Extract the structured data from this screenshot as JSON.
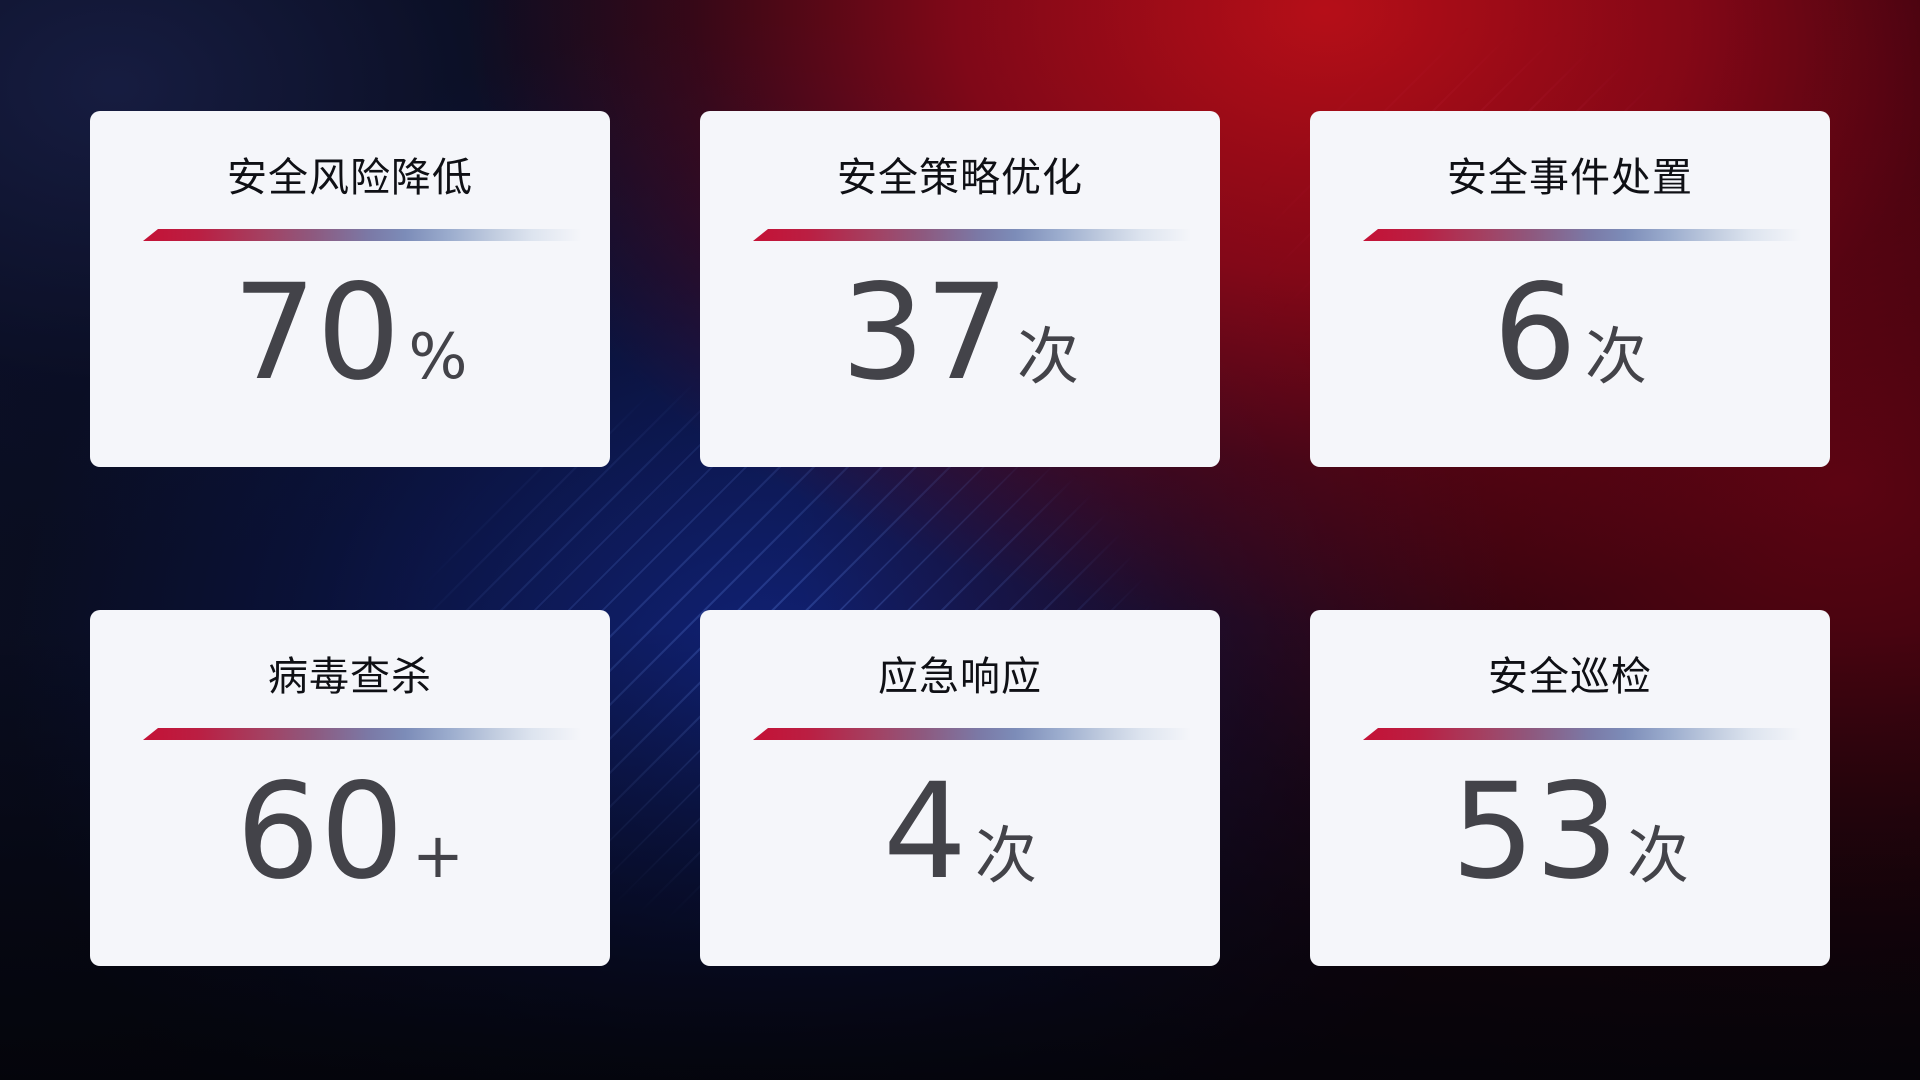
{
  "dashboard": {
    "cards": [
      {
        "title": "安全风险降低",
        "value": "70",
        "unit": "%"
      },
      {
        "title": "安全策略优化",
        "value": "37",
        "unit": "次"
      },
      {
        "title": "安全事件处置",
        "value": "6",
        "unit": "次"
      },
      {
        "title": "病毒查杀",
        "value": "60",
        "unit": "+"
      },
      {
        "title": "应急响应",
        "value": "4",
        "unit": "次"
      },
      {
        "title": "安全巡检",
        "value": "53",
        "unit": "次"
      }
    ],
    "colors": {
      "card_background": "#f5f6fa",
      "title_text": "#0f1015",
      "value_text": "#434349",
      "divider_red_start": "#c41236",
      "divider_blue_mid": "#7c8cb8",
      "divider_fade_end": "#dde4ef",
      "background_navy": "#0c1230",
      "background_blue_glow": "#11237c",
      "background_red_glow": "#b80f16"
    }
  }
}
